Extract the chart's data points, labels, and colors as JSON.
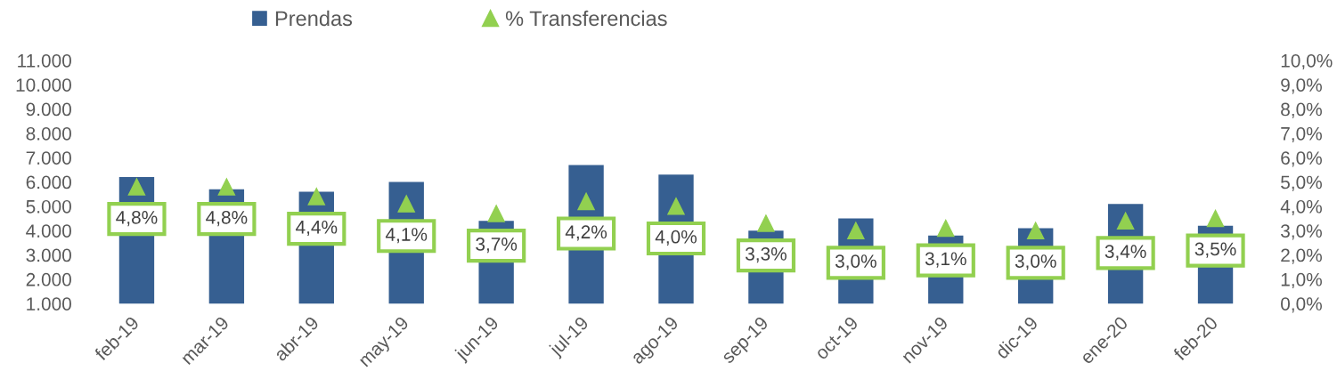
{
  "chart_data": {
    "type": "bar",
    "categories": [
      "feb-19",
      "mar-19",
      "abr-19",
      "may-19",
      "jun-19",
      "jul-19",
      "ago-19",
      "sep-19",
      "oct-19",
      "nov-19",
      "dic-19",
      "ene-20",
      "feb-20"
    ],
    "series": [
      {
        "name": "Prendas",
        "color": "#365f91",
        "values": [
          6200,
          5700,
          5600,
          6000,
          4400,
          6700,
          6300,
          4000,
          4500,
          3800,
          4100,
          5100,
          4200
        ]
      },
      {
        "name": "% Transferencias",
        "type": "scatter",
        "axis": "y2",
        "color": "#92d050",
        "values": [
          4.8,
          4.8,
          4.4,
          4.1,
          3.7,
          4.2,
          4.0,
          3.3,
          3.0,
          3.1,
          3.0,
          3.4,
          3.5
        ],
        "value_labels": [
          "4,8%",
          "4,8%",
          "4,4%",
          "4,1%",
          "3,7%",
          "4,2%",
          "4,0%",
          "3,3%",
          "3,0%",
          "3,1%",
          "3,0%",
          "3,4%",
          "3,5%"
        ]
      }
    ],
    "marker": "triangle",
    "ylim": [
      1000,
      11000
    ],
    "yticks": [
      {
        "value": 1000,
        "label": "1.000"
      },
      {
        "value": 2000,
        "label": "2.000"
      },
      {
        "value": 3000,
        "label": "3.000"
      },
      {
        "value": 4000,
        "label": "4.000"
      },
      {
        "value": 5000,
        "label": "5.000"
      },
      {
        "value": 6000,
        "label": "6.000"
      },
      {
        "value": 7000,
        "label": "7.000"
      },
      {
        "value": 8000,
        "label": "8.000"
      },
      {
        "value": 9000,
        "label": "9.000"
      },
      {
        "value": 10000,
        "label": "10.000"
      },
      {
        "value": 11000,
        "label": "11.000"
      }
    ],
    "y2lim": [
      0,
      10
    ],
    "y2ticks": [
      {
        "value": 0,
        "label": "0,0%"
      },
      {
        "value": 1,
        "label": "1,0%"
      },
      {
        "value": 2,
        "label": "2,0%"
      },
      {
        "value": 3,
        "label": "3,0%"
      },
      {
        "value": 4,
        "label": "4,0%"
      },
      {
        "value": 5,
        "label": "5,0%"
      },
      {
        "value": 6,
        "label": "6,0%"
      },
      {
        "value": 7,
        "label": "7,0%"
      },
      {
        "value": 8,
        "label": "8,0%"
      },
      {
        "value": 9,
        "label": "9,0%"
      },
      {
        "value": 10,
        "label": "10,0%"
      }
    ],
    "legend": "top"
  }
}
